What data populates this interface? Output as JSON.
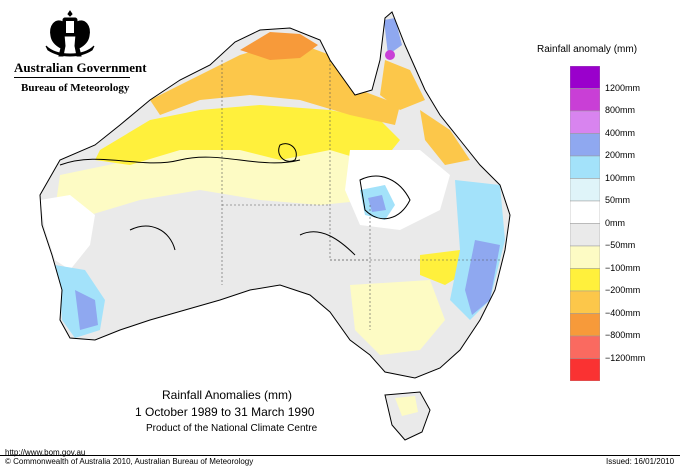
{
  "header": {
    "org_line1": "Australian Government",
    "org_line2": "Bureau of Meteorology",
    "crest": "coat-of-arms-icon"
  },
  "legend": {
    "title": "Rainfall anomaly (mm)",
    "items": [
      {
        "label": "1200mm",
        "color": "#9a00cc"
      },
      {
        "label": "800mm",
        "color": "#c93fd6"
      },
      {
        "label": "400mm",
        "color": "#d884ef"
      },
      {
        "label": "200mm",
        "color": "#8fa8f0"
      },
      {
        "label": "100mm",
        "color": "#a3e2fa"
      },
      {
        "label": "50mm",
        "color": "#dff4f9"
      },
      {
        "label": "0mm",
        "color": "#ffffff"
      },
      {
        "label": "−50mm",
        "color": "#eaeaea"
      },
      {
        "label": "−100mm",
        "color": "#fdfbc4"
      },
      {
        "label": "−200mm",
        "color": "#fff03c"
      },
      {
        "label": "−400mm",
        "color": "#fcc74a"
      },
      {
        "label": "−800mm",
        "color": "#f79a3a"
      },
      {
        "label": "−1200mm",
        "color": "#fa6a60"
      },
      {
        "label": "",
        "color": "#fa3232"
      }
    ]
  },
  "map": {
    "title": "Rainfall Anomalies (mm)",
    "period": "1 October 1989 to 31 March 1990",
    "product": "Product of the National Climate Centre"
  },
  "footer": {
    "url": "http://www.bom.gov.au",
    "copyright": "© Commonwealth of Australia 2010, Australian Bureau of Meteorology",
    "issued": "Issued: 16/01/2010"
  }
}
